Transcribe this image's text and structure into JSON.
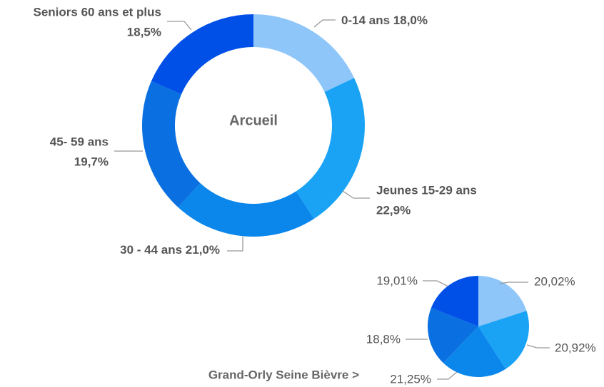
{
  "chart_data": [
    {
      "type": "donut",
      "center_label": "Arcueil",
      "categories": [
        "0-14 ans",
        "Jeunes 15-29 ans",
        "30 - 44 ans",
        "45- 59 ans",
        "Seniors 60 ans et plus"
      ],
      "values": [
        18.0,
        22.9,
        21.0,
        19.7,
        18.5
      ],
      "value_labels": [
        "18,0%",
        "22,9%",
        "21,0%",
        "19,7%",
        "18,5%"
      ],
      "colors": [
        "#8ec6fa",
        "#1aa3f5",
        "#0b86eb",
        "#0a6fe0",
        "#0050e8"
      ]
    },
    {
      "type": "pie",
      "title": "Grand-Orly Seine Bièvre >",
      "values": [
        20.02,
        20.92,
        21.25,
        18.8,
        19.01
      ],
      "value_labels": [
        "20,02%",
        "20,92%",
        "21,25%",
        "18,8%",
        "19,01%"
      ],
      "colors": [
        "#8ec6fa",
        "#1aa3f5",
        "#0b86eb",
        "#0a6fe0",
        "#0050e8"
      ]
    }
  ]
}
